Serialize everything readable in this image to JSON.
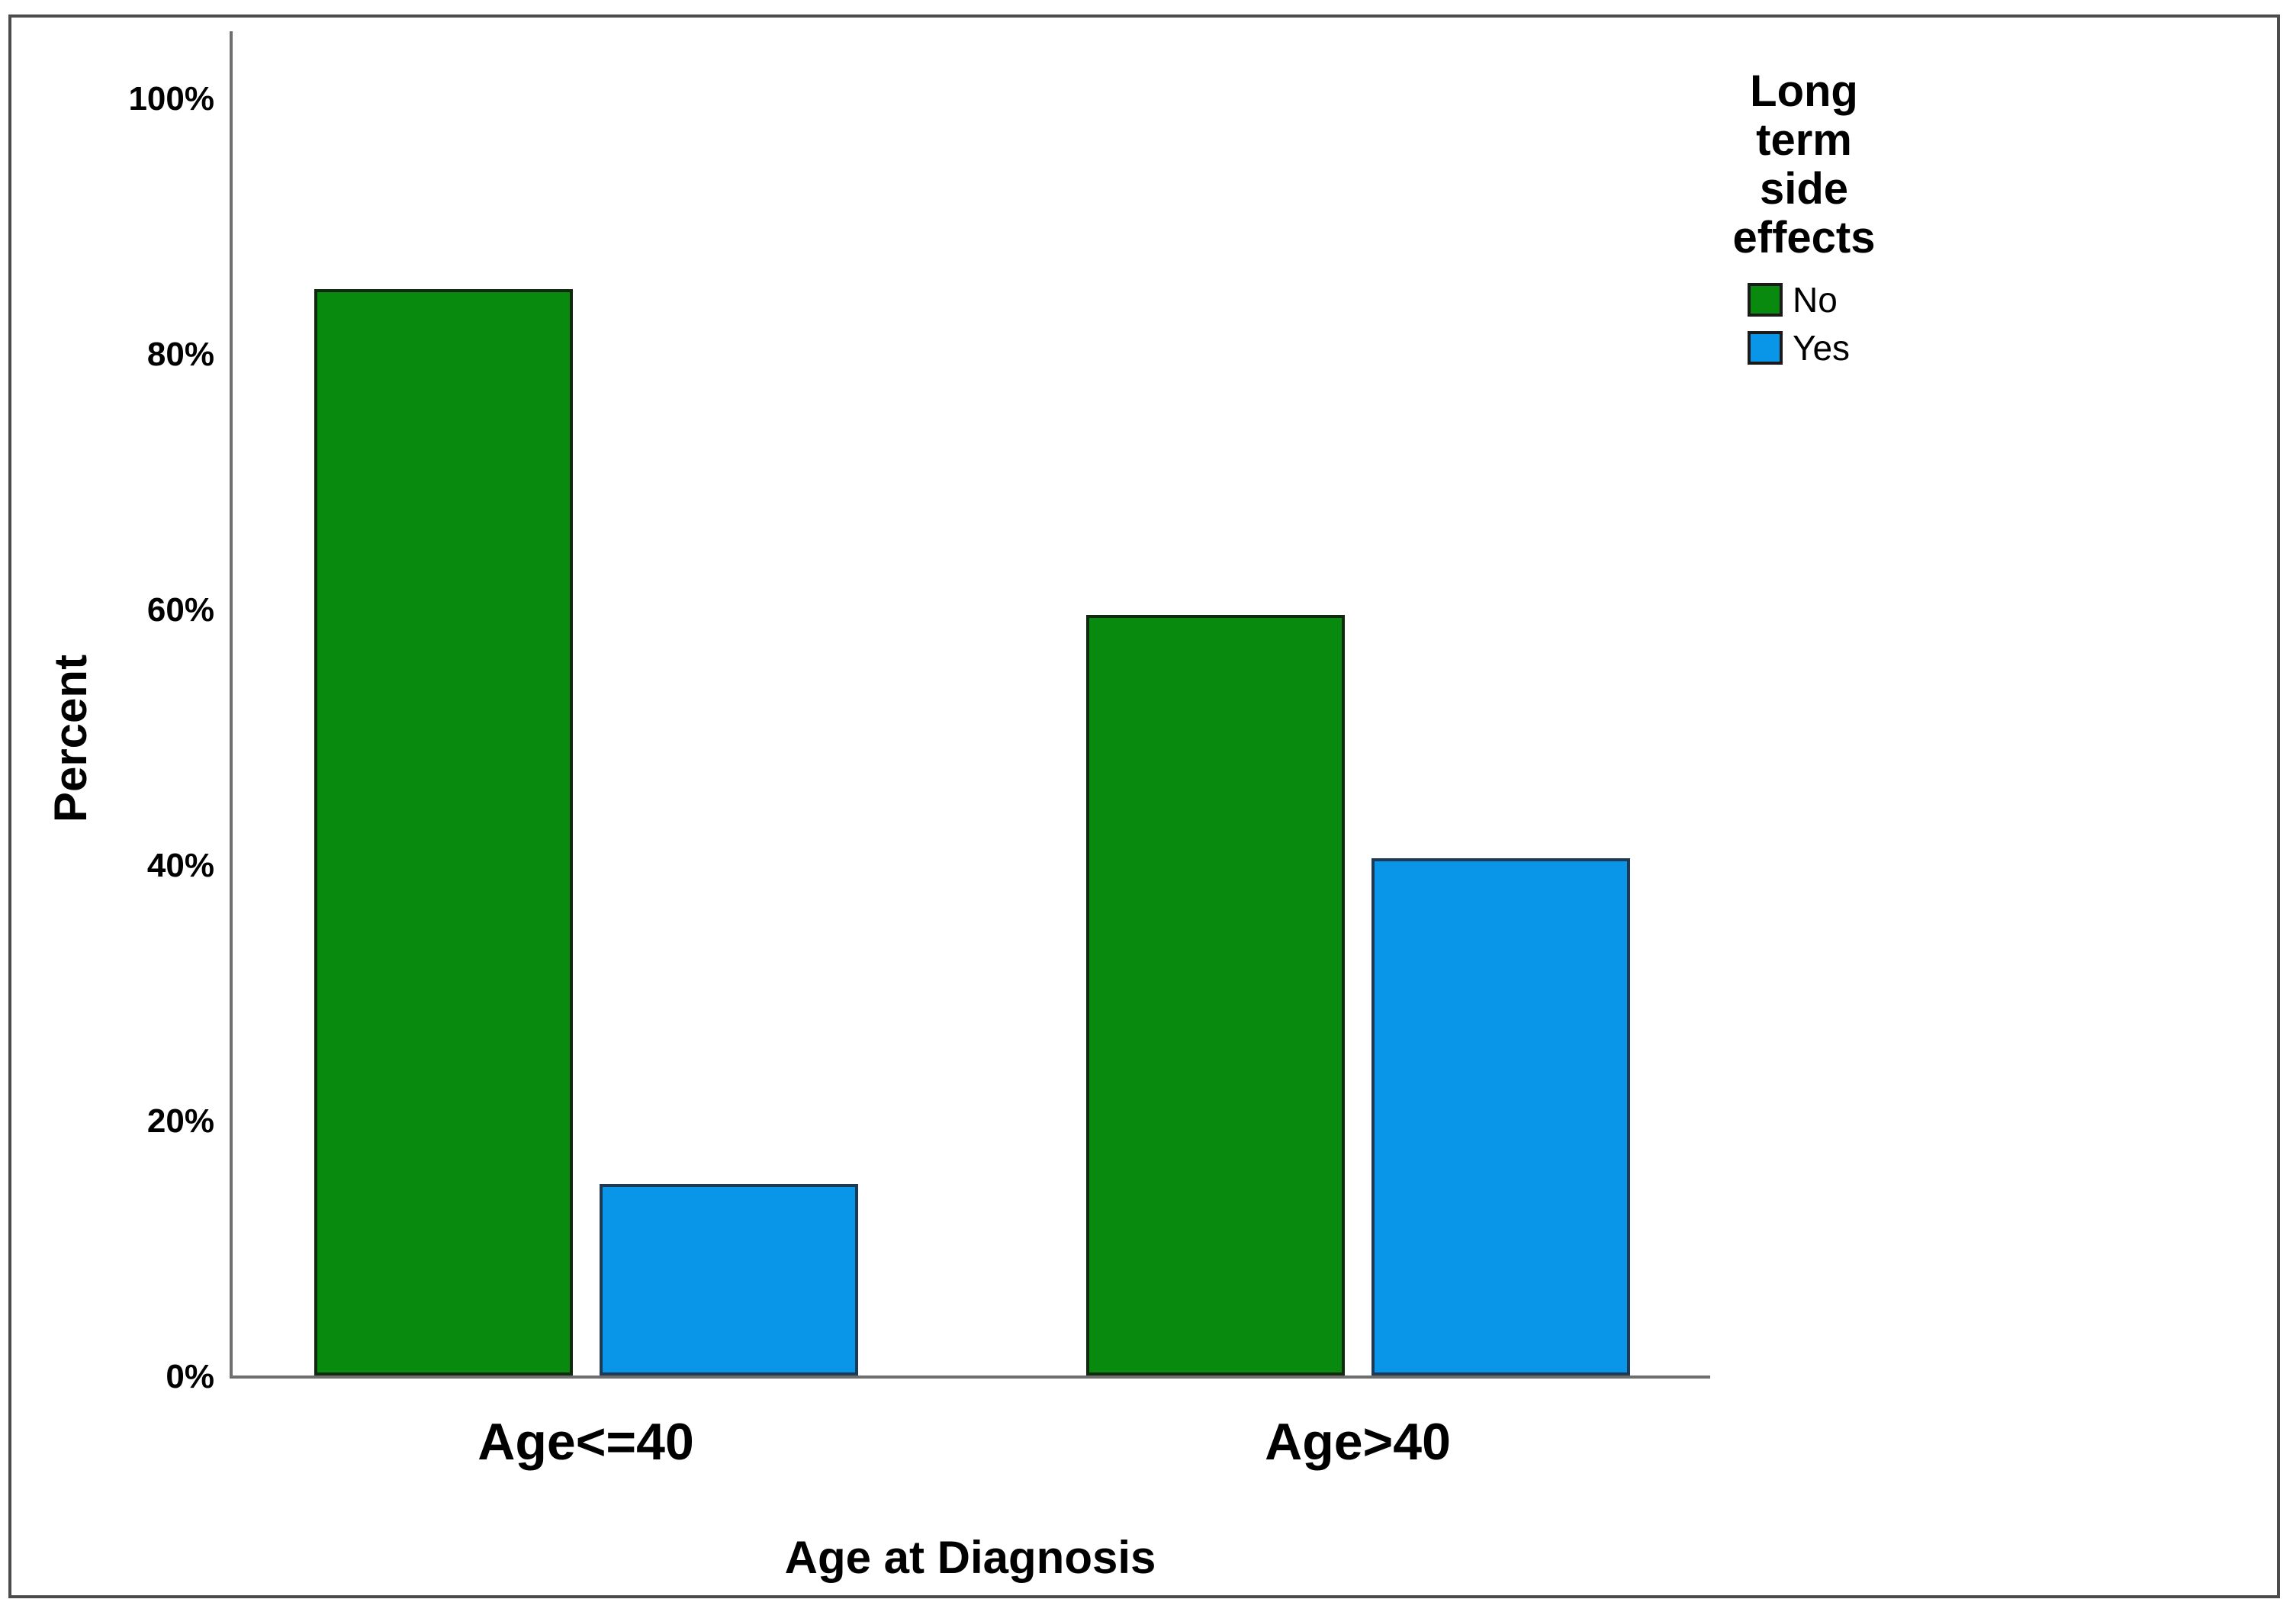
{
  "figure": {
    "background_color": "#ffffff",
    "frame_color": "#4c4c4c",
    "axis_color": "#6e6e6e",
    "text_color": "#000000"
  },
  "chart_data": {
    "type": "bar",
    "title": "",
    "categories": [
      "Age<=40",
      "Age>40"
    ],
    "series": [
      {
        "name": "No",
        "values": [
          85,
          59.5
        ],
        "color": "#078a0e",
        "border_color": "#102a10"
      },
      {
        "name": "Yes",
        "values": [
          15,
          40.5
        ],
        "color": "#0995e8",
        "border_color": "#1d3a55"
      }
    ],
    "xlabel": "Age at Diagnosis",
    "ylabel": "Percent",
    "ylim": [
      0,
      100
    ],
    "y_ticks": [
      {
        "value": 0,
        "label": "0%"
      },
      {
        "value": 20,
        "label": "20%"
      },
      {
        "value": 40,
        "label": "40%"
      },
      {
        "value": 60,
        "label": "60%"
      },
      {
        "value": 80,
        "label": "80%"
      },
      {
        "value": 100,
        "label": "100%"
      }
    ],
    "grid": false,
    "legend": {
      "title": "Long term side effects",
      "position": "top-right",
      "entries": [
        "No",
        "Yes"
      ]
    }
  }
}
